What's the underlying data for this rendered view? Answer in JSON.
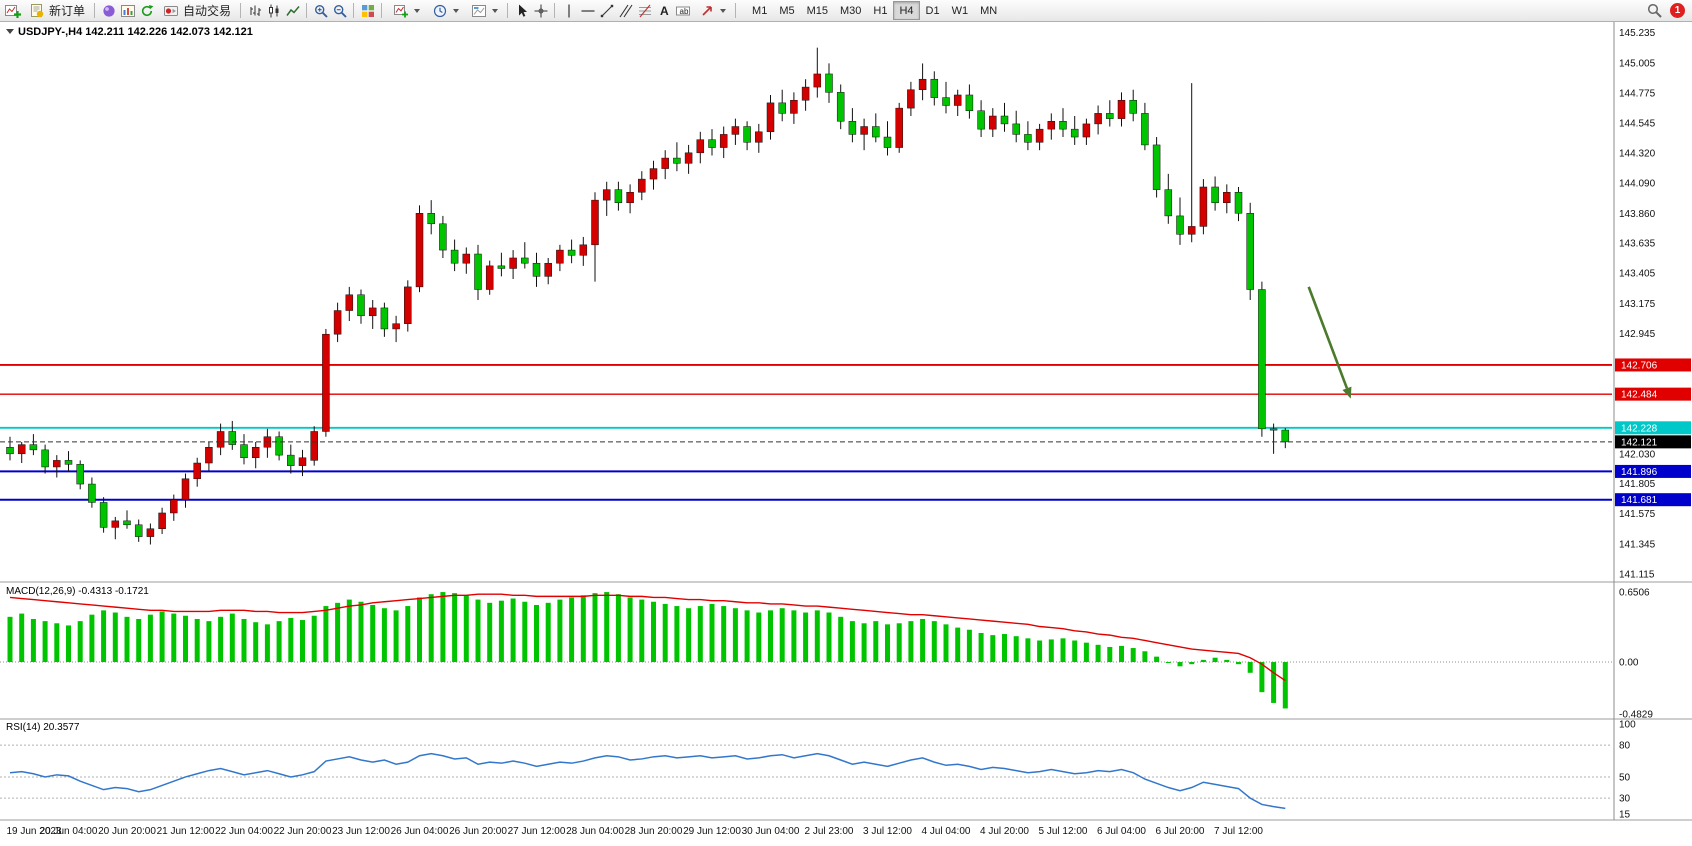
{
  "toolbar": {
    "new_order_label": "新订单",
    "auto_trading_label": "自动交易",
    "timeframes": [
      "M1",
      "M5",
      "M15",
      "M30",
      "H1",
      "H4",
      "D1",
      "W1",
      "MN"
    ],
    "active_timeframe": "H4",
    "notification_count": "1",
    "icons": [
      "new-chart-icon",
      "new-order-icon",
      "crystal-ball-icon",
      "charts-window-icon",
      "refresh-icon",
      "auto-trading-icon",
      "bar-chart-icon",
      "candlestick-chart-icon",
      "line-chart-icon",
      "zoom-in-icon",
      "zoom-out-icon",
      "tile-windows-icon",
      "indicators-icon",
      "periods-icon",
      "templates-icon",
      "cursor-icon",
      "crosshair-icon",
      "vertical-line-icon",
      "horizontal-line-icon",
      "trendline-icon",
      "equidistant-channel-icon",
      "fibonacci-icon",
      "text-icon",
      "text-label-icon",
      "arrows-tool-icon",
      "search-icon",
      "notification-badge"
    ]
  },
  "chart_data": {
    "type": "candlestick",
    "symbol": "USDJPY-",
    "period": "H4",
    "title": "USDJPY-,H4 142.211 142.226 142.073 142.121",
    "ohlc_display": {
      "open": "142.211",
      "high": "142.226",
      "low": "142.073",
      "close": "142.121"
    },
    "up_color": "#d40000",
    "down_color": "#00c400",
    "price_axis": {
      "scale_min": 141.07,
      "scale_max": 145.3,
      "labels": [
        "145.235",
        "145.005",
        "144.775",
        "144.545",
        "144.320",
        "144.090",
        "143.860",
        "143.635",
        "143.405",
        "143.175",
        "142.945",
        "142.030",
        "141.805",
        "141.575",
        "141.345",
        "141.115"
      ]
    },
    "time_labels": [
      "19 Jun 2023",
      "20 Jun 04:00",
      "20 Jun 20:00",
      "21 Jun 12:00",
      "22 Jun 04:00",
      "22 Jun 20:00",
      "23 Jun 12:00",
      "26 Jun 04:00",
      "26 Jun 20:00",
      "27 Jun 12:00",
      "28 Jun 04:00",
      "28 Jun 20:00",
      "29 Jun 12:00",
      "30 Jun 04:00",
      "2 Jul 23:00",
      "3 Jul 12:00",
      "4 Jul 04:00",
      "4 Jul 20:00",
      "5 Jul 12:00",
      "6 Jul 04:00",
      "6 Jul 20:00",
      "7 Jul 12:00"
    ],
    "bars_per_label": 5,
    "candles": [
      [
        142.08,
        142.16,
        141.98,
        142.03
      ],
      [
        142.03,
        142.12,
        141.96,
        142.1
      ],
      [
        142.1,
        142.18,
        142.02,
        142.06
      ],
      [
        142.06,
        142.1,
        141.88,
        141.93
      ],
      [
        141.93,
        142.02,
        141.85,
        141.98
      ],
      [
        141.98,
        142.05,
        141.9,
        141.95
      ],
      [
        141.95,
        141.98,
        141.76,
        141.8
      ],
      [
        141.8,
        141.85,
        141.62,
        141.66
      ],
      [
        141.66,
        141.7,
        141.43,
        141.47
      ],
      [
        141.47,
        141.55,
        141.38,
        141.52
      ],
      [
        141.52,
        141.6,
        141.46,
        141.49
      ],
      [
        141.49,
        141.53,
        141.36,
        141.4
      ],
      [
        141.4,
        141.5,
        141.34,
        141.46
      ],
      [
        141.46,
        141.62,
        141.42,
        141.58
      ],
      [
        141.58,
        141.72,
        141.52,
        141.68
      ],
      [
        141.68,
        141.88,
        141.62,
        141.84
      ],
      [
        141.84,
        142.0,
        141.78,
        141.96
      ],
      [
        141.96,
        142.12,
        141.9,
        142.08
      ],
      [
        142.08,
        142.26,
        142.02,
        142.2
      ],
      [
        142.2,
        142.28,
        142.06,
        142.1
      ],
      [
        142.1,
        142.18,
        141.95,
        142.0
      ],
      [
        142.0,
        142.12,
        141.92,
        142.08
      ],
      [
        142.08,
        142.22,
        142.0,
        142.16
      ],
      [
        142.16,
        142.2,
        141.98,
        142.02
      ],
      [
        142.02,
        142.1,
        141.88,
        141.94
      ],
      [
        141.94,
        142.06,
        141.86,
        142.0
      ],
      [
        141.98,
        142.24,
        141.94,
        142.2
      ],
      [
        142.2,
        142.98,
        142.16,
        142.94
      ],
      [
        142.94,
        143.18,
        142.88,
        143.12
      ],
      [
        143.12,
        143.3,
        143.04,
        143.24
      ],
      [
        143.24,
        143.28,
        143.02,
        143.08
      ],
      [
        143.08,
        143.2,
        142.98,
        143.14
      ],
      [
        143.14,
        143.18,
        142.92,
        142.98
      ],
      [
        142.98,
        143.08,
        142.88,
        143.02
      ],
      [
        143.02,
        143.35,
        142.96,
        143.3
      ],
      [
        143.3,
        143.92,
        143.26,
        143.86
      ],
      [
        143.86,
        143.96,
        143.7,
        143.78
      ],
      [
        143.78,
        143.84,
        143.52,
        143.58
      ],
      [
        143.58,
        143.66,
        143.42,
        143.48
      ],
      [
        143.48,
        143.6,
        143.4,
        143.55
      ],
      [
        143.55,
        143.62,
        143.2,
        143.28
      ],
      [
        143.28,
        143.5,
        143.24,
        143.46
      ],
      [
        143.46,
        143.56,
        143.38,
        143.44
      ],
      [
        143.44,
        143.58,
        143.36,
        143.52
      ],
      [
        143.52,
        143.64,
        143.44,
        143.48
      ],
      [
        143.48,
        143.56,
        143.3,
        143.38
      ],
      [
        143.38,
        143.52,
        143.32,
        143.48
      ],
      [
        143.48,
        143.62,
        143.42,
        143.58
      ],
      [
        143.58,
        143.66,
        143.48,
        143.54
      ],
      [
        143.54,
        143.68,
        143.46,
        143.62
      ],
      [
        143.62,
        144.02,
        143.34,
        143.96
      ],
      [
        143.96,
        144.1,
        143.84,
        144.04
      ],
      [
        144.04,
        144.1,
        143.88,
        143.94
      ],
      [
        143.94,
        144.08,
        143.86,
        144.02
      ],
      [
        144.02,
        144.18,
        143.96,
        144.12
      ],
      [
        144.12,
        144.26,
        144.04,
        144.2
      ],
      [
        144.2,
        144.34,
        144.12,
        144.28
      ],
      [
        144.28,
        144.4,
        144.18,
        144.24
      ],
      [
        144.24,
        144.38,
        144.16,
        144.32
      ],
      [
        144.32,
        144.48,
        144.24,
        144.42
      ],
      [
        144.42,
        144.5,
        144.3,
        144.36
      ],
      [
        144.36,
        144.52,
        144.28,
        144.46
      ],
      [
        144.46,
        144.58,
        144.38,
        144.52
      ],
      [
        144.52,
        144.56,
        144.34,
        144.4
      ],
      [
        144.4,
        144.54,
        144.32,
        144.48
      ],
      [
        144.48,
        144.76,
        144.42,
        144.7
      ],
      [
        144.7,
        144.8,
        144.56,
        144.62
      ],
      [
        144.62,
        144.78,
        144.54,
        144.72
      ],
      [
        144.72,
        144.88,
        144.64,
        144.82
      ],
      [
        144.82,
        145.12,
        144.74,
        144.92
      ],
      [
        144.92,
        145.0,
        144.7,
        144.78
      ],
      [
        144.78,
        144.84,
        144.5,
        144.56
      ],
      [
        144.56,
        144.66,
        144.4,
        144.46
      ],
      [
        144.46,
        144.58,
        144.34,
        144.52
      ],
      [
        144.52,
        144.62,
        144.4,
        144.44
      ],
      [
        144.44,
        144.56,
        144.3,
        144.36
      ],
      [
        144.36,
        144.7,
        144.32,
        144.66
      ],
      [
        144.66,
        144.86,
        144.6,
        144.8
      ],
      [
        144.8,
        145.0,
        144.72,
        144.88
      ],
      [
        144.88,
        144.94,
        144.68,
        144.74
      ],
      [
        144.74,
        144.86,
        144.62,
        144.68
      ],
      [
        144.68,
        144.8,
        144.6,
        144.76
      ],
      [
        144.76,
        144.84,
        144.58,
        144.64
      ],
      [
        144.64,
        144.72,
        144.44,
        144.5
      ],
      [
        144.5,
        144.66,
        144.44,
        144.6
      ],
      [
        144.6,
        144.7,
        144.48,
        144.54
      ],
      [
        144.54,
        144.64,
        144.4,
        144.46
      ],
      [
        144.46,
        144.56,
        144.34,
        144.4
      ],
      [
        144.4,
        144.54,
        144.34,
        144.5
      ],
      [
        144.5,
        144.62,
        144.42,
        144.56
      ],
      [
        144.56,
        144.66,
        144.44,
        144.5
      ],
      [
        144.5,
        144.6,
        144.38,
        144.44
      ],
      [
        144.44,
        144.58,
        144.38,
        144.54
      ],
      [
        144.54,
        144.68,
        144.46,
        144.62
      ],
      [
        144.62,
        144.72,
        144.52,
        144.58
      ],
      [
        144.58,
        144.78,
        144.52,
        144.72
      ],
      [
        144.72,
        144.8,
        144.56,
        144.62
      ],
      [
        144.62,
        144.7,
        144.34,
        144.38
      ],
      [
        144.38,
        144.44,
        143.98,
        144.04
      ],
      [
        144.04,
        144.16,
        143.78,
        143.84
      ],
      [
        143.84,
        143.98,
        143.62,
        143.7
      ],
      [
        143.7,
        144.85,
        143.64,
        143.76
      ],
      [
        143.76,
        144.12,
        143.7,
        144.06
      ],
      [
        144.06,
        144.14,
        143.88,
        143.94
      ],
      [
        143.94,
        144.08,
        143.86,
        144.02
      ],
      [
        144.02,
        144.06,
        143.8,
        143.86
      ],
      [
        143.86,
        143.94,
        143.2,
        143.28
      ],
      [
        143.28,
        143.34,
        142.16,
        142.22
      ],
      [
        142.22,
        142.26,
        142.03,
        142.21
      ],
      [
        142.211,
        142.226,
        142.073,
        142.121
      ]
    ],
    "price_lines": [
      {
        "price": 142.706,
        "label": "142.706",
        "color": "#e00000",
        "width": 1.8
      },
      {
        "price": 142.484,
        "label": "142.484",
        "color": "#e00000",
        "width": 1.4
      },
      {
        "price": 142.228,
        "label": "142.228",
        "color": "#00c8c8",
        "width": 1.8
      },
      {
        "price": 141.896,
        "label": "141.896",
        "color": "#0000cd",
        "width": 2
      },
      {
        "price": 141.681,
        "label": "141.681",
        "color": "#0000cd",
        "width": 2
      }
    ],
    "current_price": {
      "price": 142.121,
      "label": "142.121",
      "color": "#000000"
    },
    "annotation_arrow": {
      "from": {
        "bar": 111,
        "price": 143.3
      },
      "to": {
        "bar": 114.6,
        "price": 142.45
      },
      "color": "#4c7a2c"
    },
    "macd": {
      "label": "MACD(12,26,9) -0.4313 -0.1721",
      "value": -0.4313,
      "signal_value": -0.1721,
      "axis_labels": [
        "0.6506",
        "0.00",
        "-0.4829"
      ],
      "max": 0.6506,
      "min": -0.4829,
      "histogram_color": "#00c400",
      "signal_color": "#e00000",
      "histogram": [
        0.42,
        0.45,
        0.4,
        0.38,
        0.36,
        0.34,
        0.38,
        0.44,
        0.48,
        0.46,
        0.42,
        0.4,
        0.44,
        0.47,
        0.45,
        0.43,
        0.4,
        0.38,
        0.42,
        0.45,
        0.4,
        0.37,
        0.35,
        0.38,
        0.41,
        0.39,
        0.43,
        0.52,
        0.55,
        0.58,
        0.56,
        0.53,
        0.5,
        0.48,
        0.52,
        0.6,
        0.63,
        0.65,
        0.64,
        0.62,
        0.58,
        0.55,
        0.57,
        0.59,
        0.56,
        0.53,
        0.55,
        0.58,
        0.6,
        0.62,
        0.64,
        0.65,
        0.63,
        0.6,
        0.58,
        0.56,
        0.54,
        0.52,
        0.5,
        0.52,
        0.54,
        0.52,
        0.5,
        0.48,
        0.46,
        0.48,
        0.5,
        0.48,
        0.46,
        0.48,
        0.46,
        0.42,
        0.38,
        0.36,
        0.38,
        0.35,
        0.36,
        0.38,
        0.4,
        0.38,
        0.35,
        0.32,
        0.3,
        0.27,
        0.25,
        0.26,
        0.24,
        0.22,
        0.2,
        0.21,
        0.22,
        0.2,
        0.18,
        0.16,
        0.14,
        0.15,
        0.13,
        0.1,
        0.05,
        0.0,
        -0.04,
        -0.02,
        0.02,
        0.04,
        0.02,
        -0.02,
        -0.1,
        -0.28,
        -0.38,
        -0.4313
      ],
      "signal": [
        0.6,
        0.59,
        0.58,
        0.57,
        0.56,
        0.55,
        0.54,
        0.53,
        0.52,
        0.51,
        0.5,
        0.49,
        0.48,
        0.48,
        0.47,
        0.47,
        0.47,
        0.47,
        0.48,
        0.48,
        0.48,
        0.47,
        0.47,
        0.46,
        0.46,
        0.46,
        0.47,
        0.48,
        0.5,
        0.52,
        0.53,
        0.55,
        0.56,
        0.57,
        0.58,
        0.59,
        0.6,
        0.61,
        0.62,
        0.62,
        0.63,
        0.63,
        0.63,
        0.62,
        0.62,
        0.61,
        0.61,
        0.61,
        0.61,
        0.61,
        0.62,
        0.62,
        0.62,
        0.61,
        0.61,
        0.6,
        0.6,
        0.59,
        0.58,
        0.58,
        0.57,
        0.57,
        0.56,
        0.55,
        0.55,
        0.54,
        0.54,
        0.53,
        0.52,
        0.52,
        0.51,
        0.5,
        0.49,
        0.48,
        0.47,
        0.46,
        0.45,
        0.44,
        0.44,
        0.43,
        0.42,
        0.41,
        0.4,
        0.39,
        0.38,
        0.37,
        0.36,
        0.35,
        0.33,
        0.32,
        0.31,
        0.29,
        0.28,
        0.26,
        0.25,
        0.23,
        0.22,
        0.2,
        0.18,
        0.16,
        0.14,
        0.12,
        0.11,
        0.1,
        0.09,
        0.08,
        0.04,
        -0.02,
        -0.1,
        -0.1721
      ]
    },
    "rsi": {
      "label": "RSI(14) 20.3577",
      "value": 20.3577,
      "axis_labels": [
        "100",
        "80",
        "50",
        "30",
        "15"
      ],
      "max": 100,
      "min": 15,
      "levels": [
        80,
        50,
        30
      ],
      "line_color": "#3377cc",
      "values": [
        54,
        55,
        53,
        50,
        52,
        51,
        46,
        42,
        38,
        40,
        39,
        36,
        38,
        42,
        46,
        50,
        53,
        56,
        58,
        55,
        52,
        54,
        56,
        53,
        50,
        52,
        55,
        65,
        67,
        69,
        66,
        64,
        66,
        62,
        64,
        70,
        72,
        70,
        67,
        68,
        62,
        64,
        63,
        65,
        63,
        60,
        62,
        64,
        63,
        65,
        68,
        70,
        69,
        66,
        67,
        69,
        70,
        68,
        69,
        70,
        68,
        69,
        70,
        67,
        68,
        70,
        71,
        68,
        70,
        72,
        70,
        66,
        62,
        64,
        62,
        60,
        63,
        66,
        68,
        64,
        61,
        62,
        60,
        57,
        59,
        58,
        56,
        54,
        55,
        57,
        55,
        53,
        54,
        56,
        55,
        57,
        54,
        48,
        44,
        40,
        37,
        40,
        45,
        43,
        41,
        39,
        30,
        24,
        22,
        20.36
      ]
    }
  }
}
